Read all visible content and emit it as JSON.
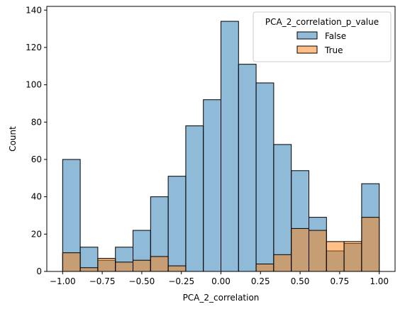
{
  "chart_data": {
    "type": "histogram",
    "xlabel": "PCA_2_correlation",
    "ylabel": "Count",
    "xlim": [
      -1.1,
      1.1
    ],
    "ylim": [
      0,
      142
    ],
    "x_ticks": [
      -1.0,
      -0.75,
      -0.5,
      -0.25,
      0.0,
      0.25,
      0.5,
      0.75,
      1.0
    ],
    "x_tick_labels": [
      "−1.00",
      "−0.75",
      "−0.50",
      "−0.25",
      "0.00",
      "0.25",
      "0.50",
      "0.75",
      "1.00"
    ],
    "y_ticks": [
      0,
      20,
      40,
      60,
      80,
      100,
      120,
      140
    ],
    "bin_edges": [
      -1.0,
      -0.8889,
      -0.7778,
      -0.6667,
      -0.5556,
      -0.4444,
      -0.3333,
      -0.2222,
      -0.1111,
      0.0,
      0.1111,
      0.2222,
      0.3333,
      0.4444,
      0.5556,
      0.6667,
      0.7778,
      0.8889,
      1.0
    ],
    "legend": {
      "title": "PCA_2_correlation_p_value",
      "placement": "top-right"
    },
    "series": [
      {
        "name": "False",
        "color": "#1f77b4",
        "values": [
          60,
          13,
          6,
          13,
          22,
          40,
          51,
          78,
          92,
          134,
          111,
          101,
          68,
          54,
          29,
          11,
          15,
          47
        ]
      },
      {
        "name": "True",
        "color": "#ff7f0e",
        "values": [
          10,
          2,
          7,
          5,
          6,
          8,
          3,
          0,
          0,
          0,
          0,
          4,
          9,
          23,
          22,
          16,
          16,
          29
        ]
      }
    ]
  }
}
